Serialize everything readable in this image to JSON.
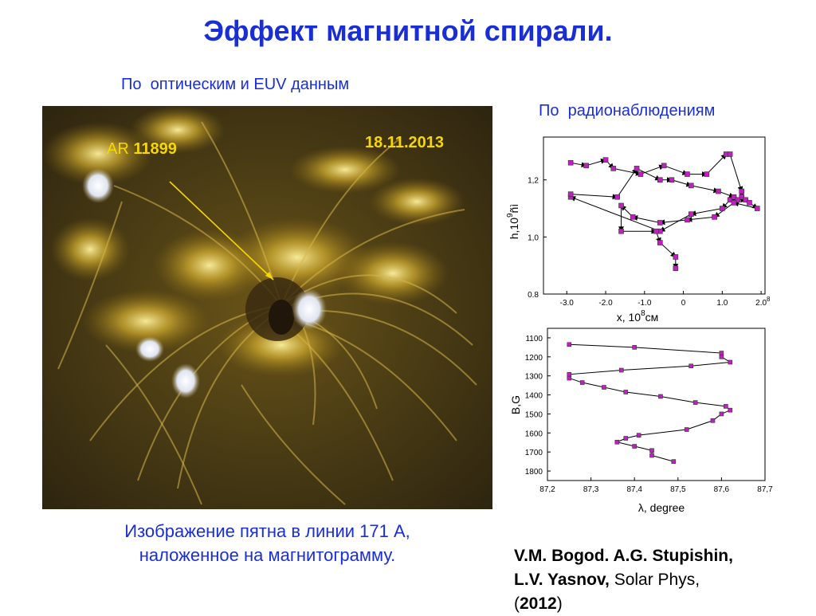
{
  "slide": {
    "title": "Эффект магнитной спирали.",
    "subtitle_left": "По  оптическим и EUV данным",
    "subtitle_right": "По  радионаблюдениям",
    "image": {
      "ar_prefix": "AR ",
      "ar_number": "11899",
      "date": "18.11.2013"
    },
    "caption_line1": "Изображение пятна в линии 171 А,",
    "caption_line2": "наложенное на магнитограмму.",
    "reference": {
      "authors_line1": "V.M. Bogod. A.G. Stupishin,",
      "author3": "L.V. Yasnov,",
      "journal": " Solar Phys,",
      "year_open": "(",
      "year": "2012",
      "year_close": ")"
    },
    "colors": {
      "title": "#1a2ed6",
      "label_yellow": "#f5d800",
      "marker": "#c020c0"
    }
  },
  "chart_data": [
    {
      "type": "scatter",
      "title": "",
      "xlabel": "x,  10",
      "xlabel_sup": "8",
      "xlabel_unit": "см",
      "ylabel": "h,10",
      "ylabel_sup": "9",
      "ylabel_unit": "ñì",
      "xlim": [
        -3.6,
        2.1
      ],
      "ylim": [
        0.8,
        1.35
      ],
      "xticks": [
        -3.0,
        -2.0,
        -1.0,
        0.0,
        1.0,
        2.0
      ],
      "xtick_labels": [
        "-3.0",
        "-2.0",
        "-1.0",
        "0",
        "1.0",
        "2.0"
      ],
      "x_exponent_label": "8",
      "yticks": [
        0.8,
        1.0,
        1.2
      ],
      "ytick_labels": [
        "0.8",
        "1,0",
        "1,2"
      ],
      "connected_with_arrows": true,
      "x": [
        -2.9,
        -2.5,
        -2.0,
        -1.8,
        -1.1,
        -0.5,
        0.1,
        0.6,
        1.1,
        1.2,
        1.5,
        1.5,
        1.2,
        1.0,
        0.2,
        -0.6,
        -2.9,
        -2.9,
        -1.7,
        -1.2,
        -0.6,
        -0.3,
        0.2,
        0.9,
        1.3,
        1.4,
        1.6,
        1.7,
        1.9,
        1.3,
        0.8,
        0.1,
        -0.6,
        -1.3,
        -1.6,
        -1.6,
        -0.7,
        -0.6,
        -0.2,
        -0.2
      ],
      "y": [
        1.26,
        1.25,
        1.27,
        1.24,
        1.22,
        1.25,
        1.22,
        1.22,
        1.29,
        1.29,
        1.16,
        1.14,
        1.13,
        1.1,
        1.08,
        1.02,
        1.14,
        1.15,
        1.14,
        1.24,
        1.2,
        1.2,
        1.18,
        1.16,
        1.14,
        1.13,
        1.13,
        1.12,
        1.1,
        1.12,
        1.07,
        1.06,
        1.05,
        1.07,
        1.11,
        1.02,
        1.02,
        0.98,
        0.93,
        0.89
      ]
    },
    {
      "type": "line",
      "title": "",
      "xlabel": "λ, degree",
      "ylabel": "B,G",
      "xlim": [
        87.2,
        87.7
      ],
      "ylim": [
        1850,
        1050
      ],
      "y_inverted": true,
      "xticks": [
        87.2,
        87.3,
        87.4,
        87.5,
        87.6,
        87.7
      ],
      "xtick_labels": [
        "87,2",
        "87,3",
        "87,4",
        "87,5",
        "87,6",
        "87,7"
      ],
      "yticks": [
        1100,
        1200,
        1300,
        1400,
        1500,
        1600,
        1700,
        1800
      ],
      "ytick_labels": [
        "1100",
        "1200",
        "1300",
        "1400",
        "1500",
        "1600",
        "1700",
        "1800"
      ],
      "x": [
        87.25,
        87.4,
        87.6,
        87.6,
        87.62,
        87.53,
        87.37,
        87.25,
        87.25,
        87.28,
        87.33,
        87.38,
        87.46,
        87.54,
        87.61,
        87.62,
        87.6,
        87.58,
        87.52,
        87.41,
        87.38,
        87.36,
        87.4,
        87.44,
        87.44,
        87.49
      ],
      "y": [
        1135,
        1150,
        1180,
        1200,
        1228,
        1248,
        1270,
        1292,
        1312,
        1335,
        1360,
        1385,
        1408,
        1440,
        1460,
        1480,
        1500,
        1535,
        1582,
        1612,
        1628,
        1648,
        1670,
        1692,
        1718,
        1750
      ]
    }
  ]
}
